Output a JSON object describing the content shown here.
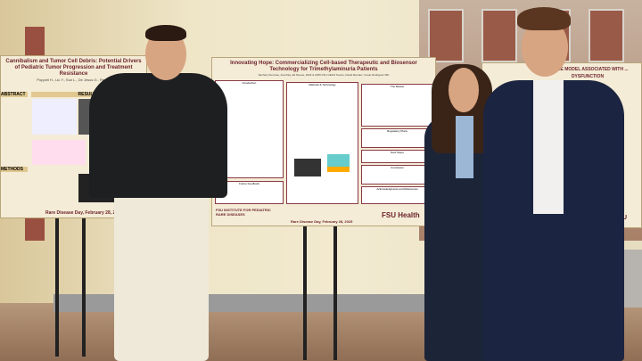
{
  "posters": {
    "left": {
      "title": "Cannibalism and Tumor Cell Debris: Potential Drivers of Pediatric Tumor Progression and Treatment Resistance",
      "authors": "Poppell H., Liu Y., Sun L., De Jesus G., Ren Y.",
      "sections": [
        "ABSTRACT",
        "RESULTS",
        "METHODS"
      ],
      "footer": "Rare Disease Day, February 28, 2025"
    },
    "center": {
      "title": "Innovating Hope: Commercializing Cell-based Therapeutic and Biosensor Technology for Trimethylaminuria Patients",
      "authors": "Zachary Rourtree, Ava Paly, Eli Nieves, 2024 & 2025 FSU GEOS Teams, David Mendez, Cesar Rodriguez MD",
      "sections": [
        "Introduction",
        "Methods & Technology",
        "The Market",
        "Regulatory Plans",
        "Next Steps",
        "Conclusion",
        "Acknowledgments and References",
        "Future Feedback"
      ],
      "footer": "Rare Disease Day, February 28, 2025",
      "logo_left": "FSU INSTITUTE FOR PEDIATRIC RARE DISEASES",
      "logo_right": "FSU Health"
    },
    "right": {
      "title": "MOUSE MODEL ASSOCIATED WITH ... DYSFUNCTION",
      "logo": "FSU"
    }
  }
}
